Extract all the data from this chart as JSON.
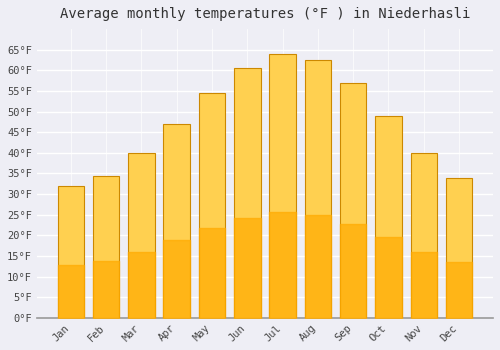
{
  "title": "Average monthly temperatures (°F ) in Niederhasli",
  "months": [
    "Jan",
    "Feb",
    "Mar",
    "Apr",
    "May",
    "Jun",
    "Jul",
    "Aug",
    "Sep",
    "Oct",
    "Nov",
    "Dec"
  ],
  "values": [
    32,
    34.5,
    40,
    47,
    54.5,
    60.5,
    64,
    62.5,
    57,
    49,
    40,
    34
  ],
  "bar_color": "#FFAA00",
  "bar_color_light": "#FFD050",
  "bar_edge_color": "#CC8800",
  "background_color": "#EEEEF5",
  "plot_bg_color": "#EEEEF5",
  "grid_color": "#FFFFFF",
  "axis_color": "#999999",
  "tick_label_color": "#444444",
  "title_color": "#333333",
  "ylim": [
    0,
    70
  ],
  "yticks": [
    0,
    5,
    10,
    15,
    20,
    25,
    30,
    35,
    40,
    45,
    50,
    55,
    60,
    65
  ],
  "ylabel_suffix": "°F",
  "title_fontsize": 10,
  "tick_fontsize": 7.5,
  "font_family": "monospace"
}
